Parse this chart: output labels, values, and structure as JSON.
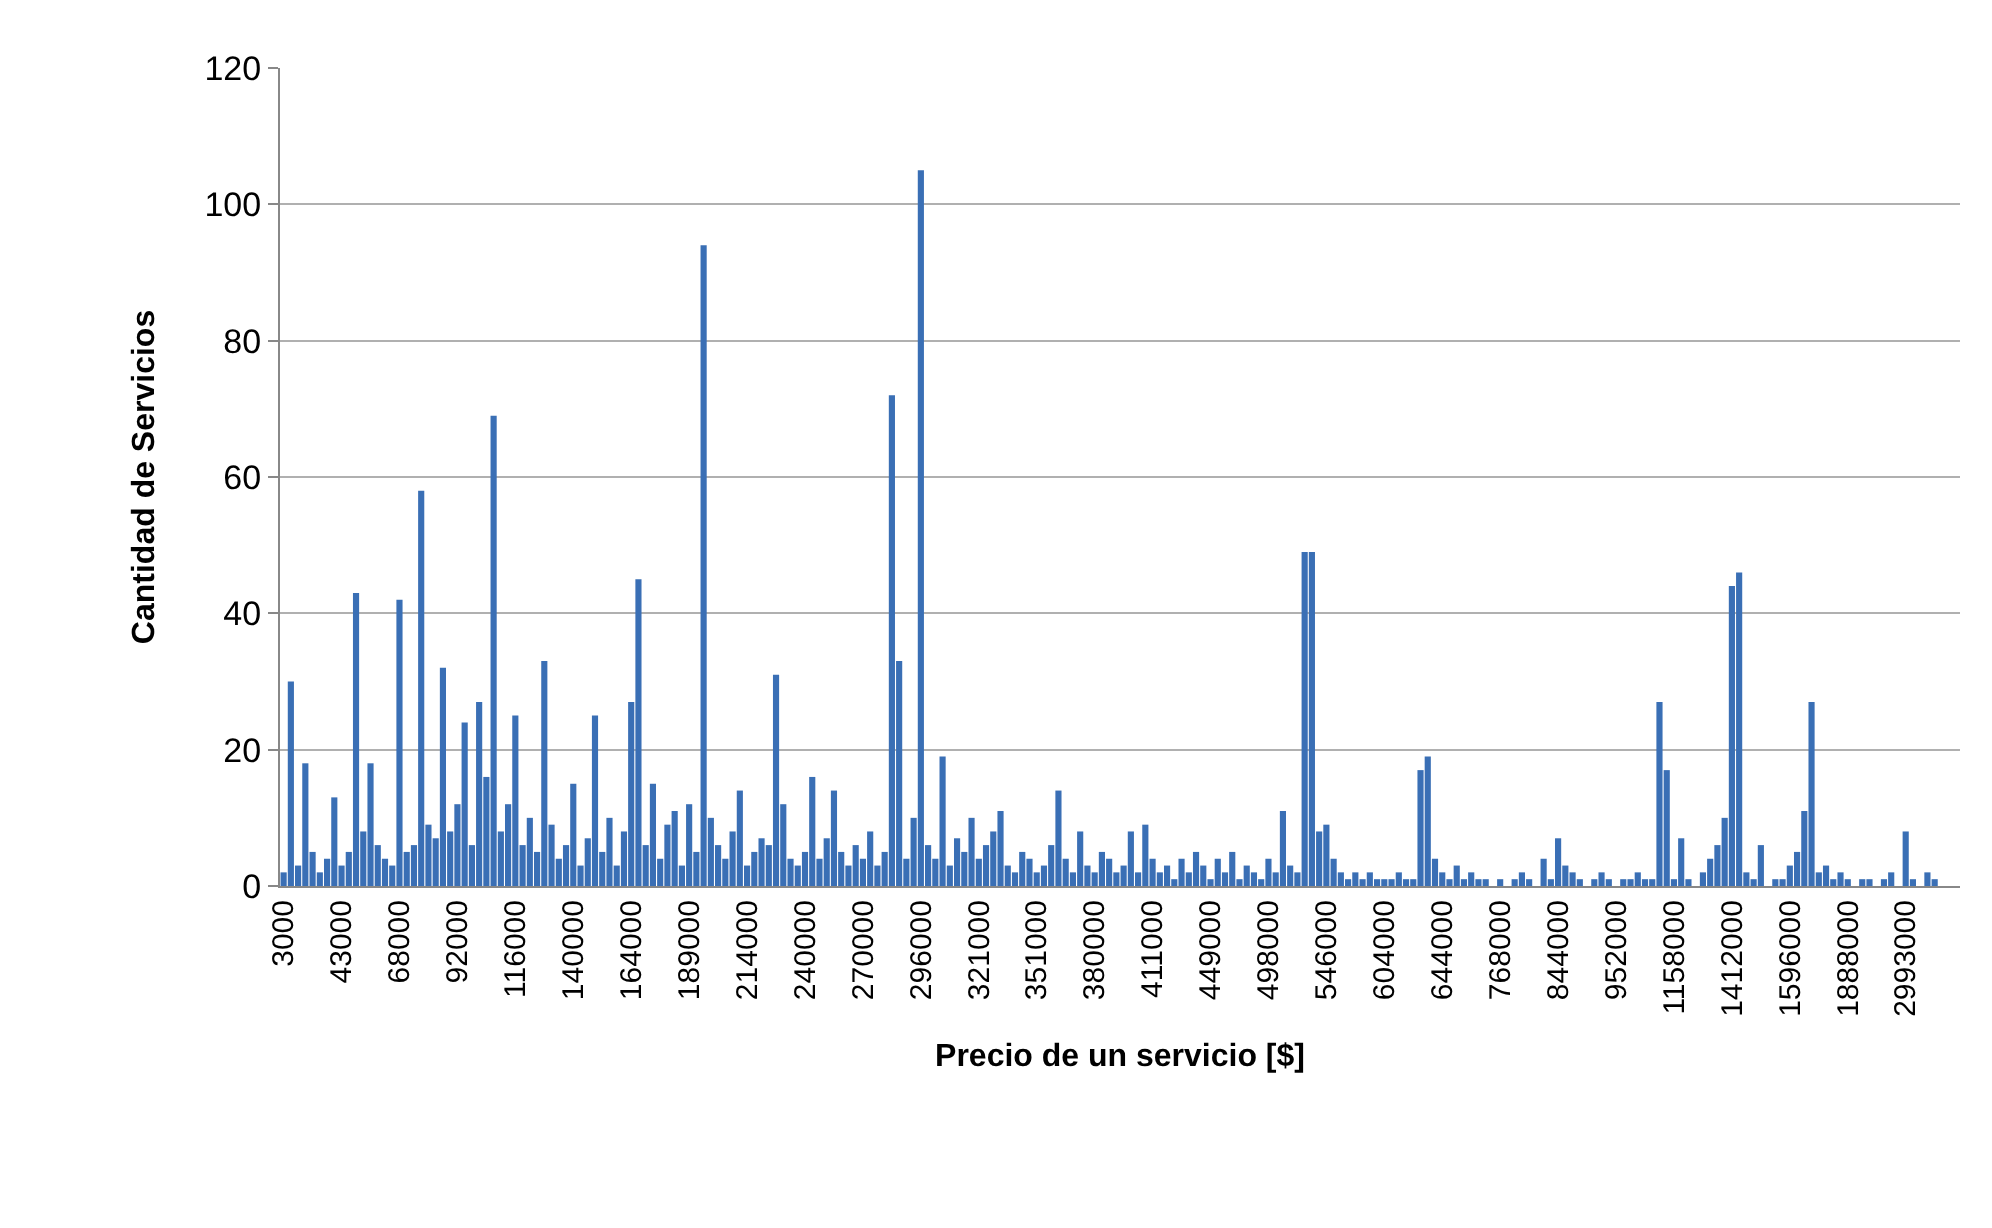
{
  "chart_data": {
    "type": "bar",
    "xlabel": "Precio de un servicio [$]",
    "ylabel": "Cantidad de Servicios",
    "categories": [
      "3000",
      null,
      null,
      null,
      null,
      null,
      null,
      null,
      "43000",
      null,
      null,
      null,
      null,
      null,
      null,
      null,
      "68000",
      null,
      null,
      null,
      null,
      null,
      null,
      null,
      "92000",
      null,
      null,
      null,
      null,
      null,
      null,
      null,
      "116000",
      null,
      null,
      null,
      null,
      null,
      null,
      null,
      "140000",
      null,
      null,
      null,
      null,
      null,
      null,
      null,
      "164000",
      null,
      null,
      null,
      null,
      null,
      null,
      null,
      "189000",
      null,
      null,
      null,
      null,
      null,
      null,
      null,
      "214000",
      null,
      null,
      null,
      null,
      null,
      null,
      null,
      "240000",
      null,
      null,
      null,
      null,
      null,
      null,
      null,
      "270000",
      null,
      null,
      null,
      null,
      null,
      null,
      null,
      "296000",
      null,
      null,
      null,
      null,
      null,
      null,
      null,
      "321000",
      null,
      null,
      null,
      null,
      null,
      null,
      null,
      "351000",
      null,
      null,
      null,
      null,
      null,
      null,
      null,
      "380000",
      null,
      null,
      null,
      null,
      null,
      null,
      null,
      "411000",
      null,
      null,
      null,
      null,
      null,
      null,
      null,
      "449000",
      null,
      null,
      null,
      null,
      null,
      null,
      null,
      "498000",
      null,
      null,
      null,
      null,
      null,
      null,
      null,
      "546000",
      null,
      null,
      null,
      null,
      null,
      null,
      null,
      "604000",
      null,
      null,
      null,
      null,
      null,
      null,
      null,
      "644000",
      null,
      null,
      null,
      null,
      null,
      null,
      null,
      "768000",
      null,
      null,
      null,
      null,
      null,
      null,
      null,
      "844000",
      null,
      null,
      null,
      null,
      null,
      null,
      null,
      "952000",
      null,
      null,
      null,
      null,
      null,
      null,
      null,
      "1158000",
      null,
      null,
      null,
      null,
      null,
      null,
      null,
      "1412000",
      null,
      null,
      null,
      null,
      null,
      null,
      null,
      "1596000",
      null,
      null,
      null,
      null,
      null,
      null,
      null,
      "1888000",
      null,
      null,
      null,
      null,
      null,
      null,
      null,
      "2993000",
      null,
      null,
      null,
      null,
      null,
      null,
      null
    ],
    "values": [
      2,
      30,
      3,
      18,
      5,
      2,
      4,
      13,
      3,
      5,
      43,
      8,
      18,
      6,
      4,
      3,
      42,
      5,
      6,
      58,
      9,
      7,
      32,
      8,
      12,
      24,
      6,
      27,
      16,
      69,
      8,
      12,
      25,
      6,
      10,
      5,
      33,
      9,
      4,
      6,
      15,
      3,
      7,
      25,
      5,
      10,
      3,
      8,
      27,
      45,
      6,
      15,
      4,
      9,
      11,
      3,
      12,
      5,
      94,
      10,
      6,
      4,
      8,
      14,
      3,
      5,
      7,
      6,
      31,
      12,
      4,
      3,
      5,
      16,
      4,
      7,
      14,
      5,
      3,
      6,
      4,
      8,
      3,
      5,
      72,
      33,
      4,
      10,
      105,
      6,
      4,
      19,
      3,
      7,
      5,
      10,
      4,
      6,
      8,
      11,
      3,
      2,
      5,
      4,
      2,
      3,
      6,
      14,
      4,
      2,
      8,
      3,
      2,
      5,
      4,
      2,
      3,
      8,
      2,
      9,
      4,
      2,
      3,
      1,
      4,
      2,
      5,
      3,
      1,
      4,
      2,
      5,
      1,
      3,
      2,
      1,
      4,
      2,
      11,
      3,
      2,
      49,
      49,
      8,
      9,
      4,
      2,
      1,
      2,
      1,
      2,
      1,
      1,
      1,
      2,
      1,
      1,
      17,
      19,
      4,
      2,
      1,
      3,
      1,
      2,
      1,
      1,
      0,
      1,
      0,
      1,
      2,
      1,
      0,
      4,
      1,
      7,
      3,
      2,
      1,
      0,
      1,
      2,
      1,
      0,
      1,
      1,
      2,
      1,
      1,
      27,
      17,
      1,
      7,
      1,
      0,
      2,
      4,
      6,
      10,
      44,
      46,
      2,
      1,
      6,
      0,
      1,
      1,
      3,
      5,
      11,
      27,
      2,
      3,
      1,
      2,
      1,
      0,
      1,
      1,
      0,
      1,
      2,
      0,
      8,
      1,
      0,
      2,
      1,
      0,
      0,
      0
    ],
    "color": "#3a6fb5",
    "ylim": [
      0,
      120
    ],
    "yticks": [
      0,
      20,
      40,
      60,
      80,
      100,
      120
    ],
    "grid": "y"
  }
}
